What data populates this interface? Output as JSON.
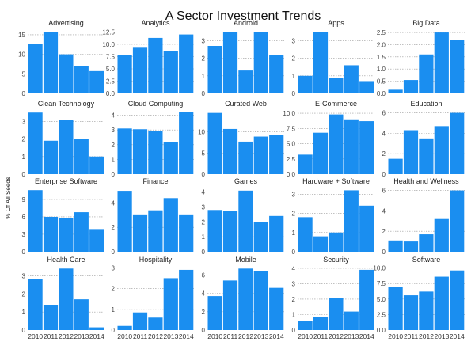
{
  "title": "A Sector Investment Trends",
  "ylabel": "% Of All Seeds",
  "colors": {
    "bar": "#1a8ef0"
  },
  "chart_data": [
    {
      "type": "bar",
      "title": "Advertising",
      "categories": [
        "2010",
        "2011",
        "2012",
        "2013",
        "2014"
      ],
      "values": [
        12.6,
        15.6,
        10.0,
        7.0,
        5.7
      ],
      "yticks": [
        0,
        5,
        10,
        15
      ],
      "ylim": [
        0,
        16.2
      ],
      "grid": true
    },
    {
      "type": "bar",
      "title": "Analytics",
      "categories": [
        "2010",
        "2011",
        "2012",
        "2013",
        "2014"
      ],
      "values": [
        7.8,
        9.3,
        11.3,
        8.6,
        12.0
      ],
      "yticks": [
        0,
        2.5,
        5.0,
        7.5,
        10.0,
        12.5
      ],
      "ylim": [
        0,
        12.9
      ],
      "grid": true
    },
    {
      "type": "bar",
      "title": "Android",
      "categories": [
        "2010",
        "2011",
        "2012",
        "2013",
        "2014"
      ],
      "values": [
        2.7,
        3.5,
        1.3,
        3.5,
        2.2
      ],
      "yticks": [
        0,
        1,
        2,
        3
      ],
      "ylim": [
        0,
        3.6
      ],
      "grid": true
    },
    {
      "type": "bar",
      "title": "Apps",
      "categories": [
        "2010",
        "2011",
        "2012",
        "2013",
        "2014"
      ],
      "values": [
        1.0,
        3.5,
        0.9,
        1.6,
        0.7
      ],
      "yticks": [
        0,
        1,
        2,
        3
      ],
      "ylim": [
        0,
        3.6
      ],
      "grid": true
    },
    {
      "type": "bar",
      "title": "Big Data",
      "categories": [
        "2010",
        "2011",
        "2012",
        "2013",
        "2014"
      ],
      "values": [
        0.15,
        0.55,
        1.6,
        2.5,
        2.2
      ],
      "yticks": [
        0.0,
        0.5,
        1.0,
        1.5,
        2.0,
        2.5
      ],
      "ylim": [
        0,
        2.6
      ],
      "grid": true
    },
    {
      "type": "bar",
      "title": "Clean Technology",
      "categories": [
        "2010",
        "2011",
        "2012",
        "2013",
        "2014"
      ],
      "values": [
        3.5,
        1.9,
        3.1,
        2.0,
        1.0
      ],
      "yticks": [
        0,
        1,
        2,
        3
      ],
      "ylim": [
        0,
        3.6
      ],
      "grid": true
    },
    {
      "type": "bar",
      "title": "Cloud Computing",
      "categories": [
        "2010",
        "2011",
        "2012",
        "2013",
        "2014"
      ],
      "values": [
        3.1,
        3.05,
        2.95,
        2.15,
        4.2
      ],
      "yticks": [
        0,
        1,
        2,
        3,
        4
      ],
      "ylim": [
        0,
        4.3
      ],
      "grid": true
    },
    {
      "type": "bar",
      "title": "Curated Web",
      "categories": [
        "2010",
        "2011",
        "2012",
        "2013",
        "2014"
      ],
      "values": [
        14.5,
        10.7,
        7.7,
        8.9,
        9.2
      ],
      "yticks": [
        0,
        5,
        10
      ],
      "ylim": [
        0,
        15.0
      ],
      "grid": true
    },
    {
      "type": "bar",
      "title": "E-Commerce",
      "categories": [
        "2010",
        "2011",
        "2012",
        "2013",
        "2014"
      ],
      "values": [
        3.2,
        6.8,
        9.8,
        9.0,
        8.7
      ],
      "yticks": [
        0,
        2.5,
        5.0,
        7.5,
        10.0
      ],
      "ylim": [
        0,
        10.4
      ],
      "grid": true
    },
    {
      "type": "bar",
      "title": "Education",
      "categories": [
        "2010",
        "2011",
        "2012",
        "2013",
        "2014"
      ],
      "values": [
        1.5,
        4.3,
        3.5,
        4.7,
        6.0
      ],
      "yticks": [
        0,
        2,
        4,
        6
      ],
      "ylim": [
        0,
        6.2
      ],
      "grid": true
    },
    {
      "type": "bar",
      "title": "Enterprise Software",
      "categories": [
        "2010",
        "2011",
        "2012",
        "2013",
        "2014"
      ],
      "values": [
        10.6,
        6.0,
        5.8,
        6.8,
        3.9
      ],
      "yticks": [
        0,
        3,
        6,
        9
      ],
      "ylim": [
        0,
        10.9
      ],
      "grid": true
    },
    {
      "type": "bar",
      "title": "Finance",
      "categories": [
        "2010",
        "2011",
        "2012",
        "2013",
        "2014"
      ],
      "values": [
        5.0,
        3.0,
        3.4,
        4.4,
        3.0
      ],
      "yticks": [
        0,
        2,
        4
      ],
      "ylim": [
        0,
        5.2
      ],
      "grid": true
    },
    {
      "type": "bar",
      "title": "Games",
      "categories": [
        "2010",
        "2011",
        "2012",
        "2013",
        "2014"
      ],
      "values": [
        2.8,
        2.75,
        4.1,
        2.0,
        2.4
      ],
      "yticks": [
        0,
        1,
        2,
        3,
        4
      ],
      "ylim": [
        0,
        4.25
      ],
      "grid": true
    },
    {
      "type": "bar",
      "title": "Hardware + Software",
      "categories": [
        "2010",
        "2011",
        "2012",
        "2013",
        "2014"
      ],
      "values": [
        1.8,
        0.8,
        1.0,
        3.2,
        2.4
      ],
      "yticks": [
        0,
        1,
        2,
        3
      ],
      "ylim": [
        0,
        3.3
      ],
      "grid": true
    },
    {
      "type": "bar",
      "title": "Health and Wellness",
      "categories": [
        "2010",
        "2011",
        "2012",
        "2013",
        "2014"
      ],
      "values": [
        1.1,
        1.0,
        1.7,
        3.2,
        6.0
      ],
      "yticks": [
        0,
        2,
        4,
        6
      ],
      "ylim": [
        0,
        6.2
      ],
      "grid": true
    },
    {
      "type": "bar",
      "title": "Health Care",
      "categories": [
        "2010",
        "2011",
        "2012",
        "2013",
        "2014"
      ],
      "values": [
        2.8,
        1.4,
        3.4,
        1.7,
        0.15
      ],
      "yticks": [
        0,
        1,
        2,
        3
      ],
      "ylim": [
        0,
        3.5
      ],
      "grid": true
    },
    {
      "type": "bar",
      "title": "Hospitality",
      "categories": [
        "2010",
        "2011",
        "2012",
        "2013",
        "2014"
      ],
      "values": [
        0.2,
        0.85,
        0.6,
        2.5,
        2.9
      ],
      "yticks": [
        0,
        1,
        2,
        3
      ],
      "ylim": [
        0,
        3.05
      ],
      "grid": true
    },
    {
      "type": "bar",
      "title": "Mobile",
      "categories": [
        "2010",
        "2011",
        "2012",
        "2013",
        "2014"
      ],
      "values": [
        3.7,
        5.4,
        6.7,
        6.4,
        4.6
      ],
      "yticks": [
        0,
        2,
        4,
        6
      ],
      "ylim": [
        0,
        6.9
      ],
      "grid": true
    },
    {
      "type": "bar",
      "title": "Security",
      "categories": [
        "2010",
        "2011",
        "2012",
        "2013",
        "2014"
      ],
      "values": [
        0.6,
        0.85,
        2.1,
        1.2,
        3.9
      ],
      "yticks": [
        0,
        1,
        2,
        3,
        4
      ],
      "ylim": [
        0,
        4.1
      ],
      "grid": true
    },
    {
      "type": "bar",
      "title": "Software",
      "categories": [
        "2010",
        "2011",
        "2012",
        "2013",
        "2014"
      ],
      "values": [
        7.0,
        5.6,
        6.2,
        8.6,
        9.6
      ],
      "yticks": [
        0,
        2.5,
        5.0,
        7.5,
        10.0
      ],
      "ylim": [
        0,
        10.2
      ],
      "grid": true
    }
  ]
}
